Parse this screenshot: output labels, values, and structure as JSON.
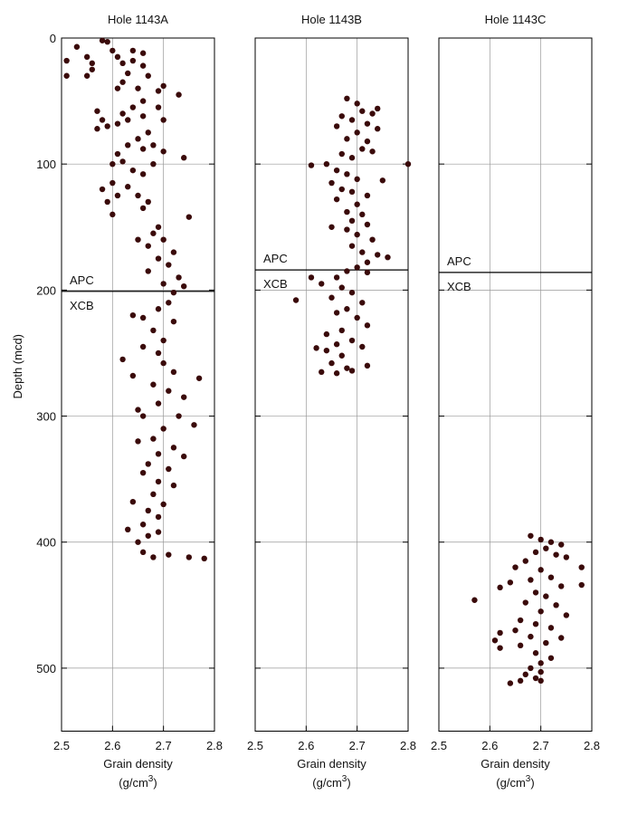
{
  "chart_data": [
    {
      "type": "scatter",
      "title": "Hole 1143A",
      "xlabel": "Grain density",
      "xlabel_unit": [
        "(g/cm",
        "3",
        ")"
      ],
      "ylabel": "Depth (mcd)",
      "xlim": [
        2.5,
        2.8
      ],
      "xticks": [
        2.5,
        2.6,
        2.7,
        2.8
      ],
      "ylim": [
        0,
        550
      ],
      "yticks": [
        0,
        100,
        200,
        300,
        400,
        500
      ],
      "ytick_labels": true,
      "y_inverted": true,
      "grid": true,
      "color": "#3a0a0a",
      "boundary": 201,
      "above_label": "APC",
      "below_label": "XCB",
      "x": [
        2.51,
        2.51,
        2.53,
        2.55,
        2.55,
        2.56,
        2.56,
        2.58,
        2.59,
        2.6,
        2.61,
        2.62,
        2.64,
        2.64,
        2.63,
        2.62,
        2.61,
        2.66,
        2.66,
        2.67,
        2.65,
        2.7,
        2.69,
        2.73,
        2.66,
        2.64,
        2.62,
        2.57,
        2.58,
        2.57,
        2.59,
        2.61,
        2.63,
        2.66,
        2.69,
        2.7,
        2.67,
        2.65,
        2.63,
        2.66,
        2.68,
        2.7,
        2.74,
        2.61,
        2.6,
        2.62,
        2.64,
        2.66,
        2.68,
        2.6,
        2.58,
        2.61,
        2.59,
        2.63,
        2.65,
        2.67,
        2.6,
        2.66,
        2.75,
        2.69,
        2.68,
        2.65,
        2.67,
        2.7,
        2.72,
        2.69,
        2.71,
        2.67,
        2.73,
        2.7,
        2.74,
        2.72,
        2.71,
        2.69,
        2.66,
        2.64,
        2.72,
        2.68,
        2.7,
        2.66,
        2.69,
        2.62,
        2.7,
        2.72,
        2.64,
        2.77,
        2.68,
        2.71,
        2.74,
        2.69,
        2.65,
        2.66,
        2.73,
        2.76,
        2.7,
        2.68,
        2.65,
        2.72,
        2.69,
        2.74,
        2.67,
        2.71,
        2.66,
        2.69,
        2.72,
        2.68,
        2.64,
        2.7,
        2.67,
        2.69,
        2.66,
        2.63,
        2.69,
        2.67,
        2.65,
        2.66,
        2.68,
        2.71,
        2.75,
        2.78
      ],
      "values": [
        18,
        30,
        7,
        15,
        30,
        20,
        25,
        2,
        3,
        10,
        15,
        20,
        10,
        18,
        28,
        35,
        40,
        12,
        22,
        30,
        40,
        38,
        42,
        45,
        50,
        55,
        60,
        58,
        65,
        72,
        70,
        68,
        65,
        62,
        55,
        65,
        75,
        80,
        85,
        88,
        85,
        90,
        95,
        92,
        100,
        98,
        105,
        108,
        100,
        115,
        120,
        125,
        130,
        118,
        125,
        130,
        140,
        135,
        142,
        150,
        155,
        160,
        165,
        160,
        170,
        175,
        180,
        185,
        190,
        195,
        197,
        202,
        210,
        215,
        222,
        220,
        225,
        232,
        240,
        245,
        250,
        255,
        258,
        265,
        268,
        270,
        275,
        280,
        285,
        290,
        295,
        300,
        300,
        307,
        310,
        318,
        320,
        325,
        330,
        332,
        338,
        342,
        345,
        352,
        355,
        362,
        368,
        370,
        375,
        380,
        386,
        390,
        392,
        395,
        400,
        408,
        412,
        410,
        412,
        413
      ]
    },
    {
      "type": "scatter",
      "title": "Hole 1143B",
      "xlabel": "Grain density",
      "xlabel_unit": [
        "(g/cm",
        "3",
        ")"
      ],
      "xlim": [
        2.5,
        2.8
      ],
      "xticks": [
        2.5,
        2.6,
        2.7,
        2.8
      ],
      "ylim": [
        0,
        550
      ],
      "yticks": [
        0,
        100,
        200,
        300,
        400,
        500
      ],
      "ytick_labels": false,
      "y_inverted": true,
      "grid": true,
      "color": "#3a0a0a",
      "boundary": 184,
      "above_label": "APC",
      "below_label": "XCB",
      "x": [
        2.68,
        2.7,
        2.71,
        2.73,
        2.74,
        2.67,
        2.69,
        2.72,
        2.74,
        2.66,
        2.7,
        2.68,
        2.72,
        2.71,
        2.73,
        2.67,
        2.69,
        2.8,
        2.61,
        2.64,
        2.66,
        2.68,
        2.7,
        2.75,
        2.65,
        2.67,
        2.69,
        2.72,
        2.66,
        2.7,
        2.68,
        2.71,
        2.69,
        2.72,
        2.65,
        2.68,
        2.7,
        2.73,
        2.69,
        2.71,
        2.74,
        2.76,
        2.72,
        2.7,
        2.68,
        2.72,
        2.66,
        2.61,
        2.63,
        2.67,
        2.69,
        2.65,
        2.58,
        2.71,
        2.68,
        2.66,
        2.7,
        2.72,
        2.67,
        2.64,
        2.69,
        2.66,
        2.62,
        2.64,
        2.71,
        2.67,
        2.65,
        2.68,
        2.72,
        2.63,
        2.66,
        2.69
      ],
      "values": [
        48,
        52,
        58,
        60,
        56,
        62,
        65,
        68,
        72,
        70,
        75,
        80,
        82,
        88,
        90,
        92,
        95,
        100,
        101,
        100,
        105,
        108,
        112,
        113,
        115,
        120,
        122,
        125,
        128,
        132,
        138,
        140,
        145,
        148,
        150,
        152,
        156,
        160,
        165,
        170,
        172,
        174,
        178,
        182,
        185,
        186,
        190,
        190,
        195,
        198,
        202,
        206,
        208,
        210,
        215,
        218,
        222,
        228,
        232,
        235,
        240,
        243,
        246,
        248,
        245,
        252,
        258,
        262,
        260,
        265,
        266,
        264
      ]
    },
    {
      "type": "scatter",
      "title": "Hole 1143C",
      "xlabel": "Grain density",
      "xlabel_unit": [
        "(g/cm",
        "3",
        ")"
      ],
      "xlim": [
        2.5,
        2.8
      ],
      "xticks": [
        2.5,
        2.6,
        2.7,
        2.8
      ],
      "ylim": [
        0,
        550
      ],
      "yticks": [
        0,
        100,
        200,
        300,
        400,
        500
      ],
      "ytick_labels": false,
      "y_inverted": true,
      "grid": true,
      "color": "#3a0a0a",
      "boundary": 186,
      "above_label": "APC",
      "below_label": "XCB",
      "x": [
        2.68,
        2.7,
        2.72,
        2.74,
        2.71,
        2.69,
        2.73,
        2.75,
        2.78,
        2.67,
        2.65,
        2.7,
        2.72,
        2.68,
        2.64,
        2.62,
        2.74,
        2.78,
        2.69,
        2.71,
        2.57,
        2.67,
        2.73,
        2.7,
        2.75,
        2.66,
        2.69,
        2.72,
        2.65,
        2.62,
        2.68,
        2.74,
        2.71,
        2.62,
        2.66,
        2.61,
        2.69,
        2.72,
        2.7,
        2.68,
        2.7,
        2.67,
        2.69,
        2.66,
        2.64,
        2.7
      ],
      "values": [
        395,
        398,
        400,
        402,
        405,
        408,
        410,
        412,
        420,
        415,
        420,
        422,
        428,
        430,
        432,
        436,
        435,
        434,
        440,
        443,
        446,
        448,
        450,
        455,
        458,
        462,
        465,
        468,
        470,
        472,
        475,
        476,
        480,
        484,
        482,
        478,
        488,
        492,
        496,
        500,
        503,
        505,
        508,
        510,
        512,
        510
      ]
    }
  ]
}
